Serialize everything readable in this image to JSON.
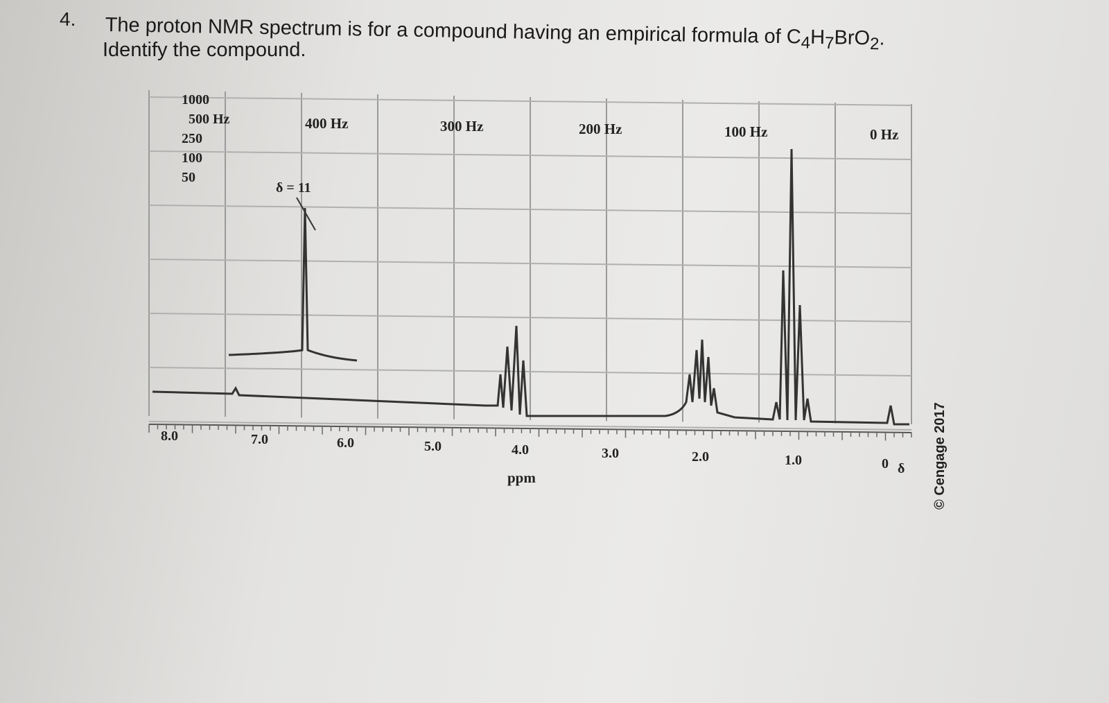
{
  "question": {
    "number": "4.",
    "line_1": "The proton NMR spectrum is for a compound having an empirical formula of ",
    "formula": [
      "C",
      "4",
      "H",
      "7",
      "BrO",
      "2",
      "."
    ],
    "line_2": "Identify the compound."
  },
  "spectrum": {
    "scale_labels": [
      "1000",
      "500 Hz",
      "250",
      "100",
      "50"
    ],
    "hz_labels": [
      "400 Hz",
      "300 Hz",
      "200 Hz",
      "100 Hz",
      "0 Hz"
    ],
    "ppm_ticks": [
      "8.0",
      "7.0",
      "6.0",
      "5.0",
      "4.0",
      "3.0",
      "2.0",
      "1.0",
      "0"
    ],
    "delta_symbol": "δ",
    "axis_label": "ppm",
    "inset_label": "δ = 11",
    "copyright": "© Cengage 2017"
  }
}
